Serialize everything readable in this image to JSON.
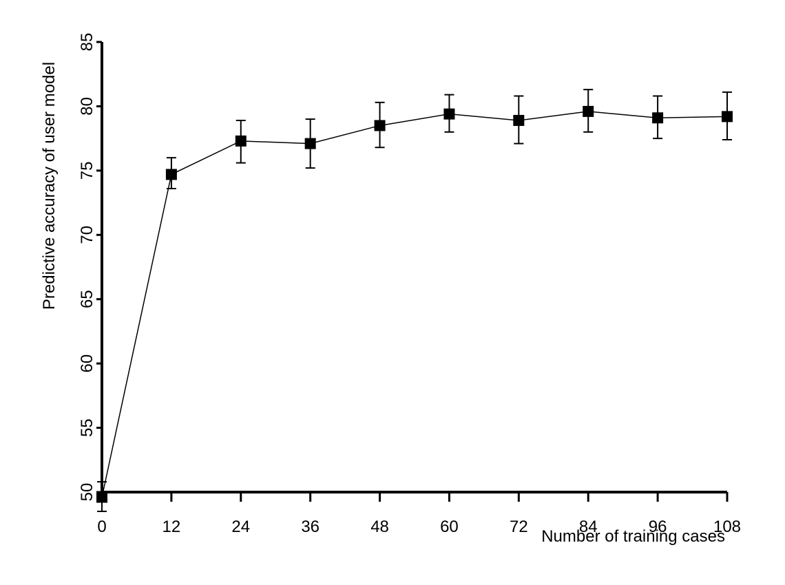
{
  "chart_data": {
    "type": "line",
    "title": "",
    "xlabel": "Number of training cases",
    "ylabel": "Predictive accuracy of user model",
    "xlim": [
      0,
      108
    ],
    "ylim": [
      50,
      85
    ],
    "xticks": [
      0,
      12,
      24,
      36,
      48,
      60,
      72,
      84,
      96,
      108
    ],
    "yticks": [
      50,
      55,
      60,
      65,
      70,
      75,
      80,
      85
    ],
    "grid": false,
    "series": [
      {
        "x": [
          0,
          12,
          24,
          36,
          48,
          60,
          72,
          84,
          96,
          108
        ],
        "values": [
          49.6,
          74.7,
          77.3,
          77.1,
          78.5,
          79.4,
          78.9,
          79.6,
          79.1,
          79.2
        ],
        "error_low": [
          48.5,
          73.6,
          75.6,
          75.2,
          76.8,
          78.0,
          77.1,
          78.0,
          77.5,
          77.4
        ],
        "error_high": [
          50.8,
          76.0,
          78.9,
          79.0,
          80.3,
          80.9,
          80.8,
          81.3,
          80.8,
          81.1
        ],
        "marker": "square",
        "color": "#000000"
      }
    ]
  }
}
